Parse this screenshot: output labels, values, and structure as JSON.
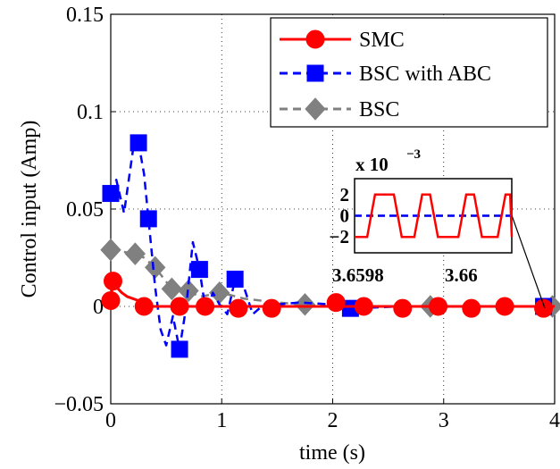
{
  "chart_data": {
    "type": "line",
    "title": "",
    "xlabel": "time (s)",
    "ylabel": "Control input (Amp)",
    "xlim": [
      0,
      4
    ],
    "ylim": [
      -0.05,
      0.15
    ],
    "x_ticks": [
      "0",
      "1",
      "2",
      "3",
      "4"
    ],
    "y_ticks": [
      "−0.05",
      "0",
      "0.05",
      "0.1",
      "0.15"
    ],
    "grid": "dotted",
    "legend_position": "top-right",
    "series": [
      {
        "name": "SMC",
        "color": "#ff0000",
        "line_style": "solid",
        "marker": "circle",
        "x": [
          0.0,
          0.02,
          0.05,
          0.1,
          0.15,
          0.2,
          0.25,
          0.3,
          0.4,
          0.6,
          0.8,
          1.0,
          1.5,
          2.0,
          2.5,
          3.0,
          3.5,
          3.95,
          4.0
        ],
        "y": [
          0.003,
          0.013,
          0.01,
          0.007,
          0.005,
          0.004,
          0.003,
          0.0,
          0.0,
          0.0,
          0.0,
          0.0,
          0.0,
          0.0,
          0.0,
          0.0,
          0.0,
          0.0,
          0.0
        ],
        "marker_x": [
          0.0,
          0.02,
          0.3,
          0.62,
          0.85,
          1.15,
          1.45,
          2.03,
          2.28,
          2.63,
          2.95,
          3.25,
          3.55,
          3.9
        ],
        "marker_y": [
          0.003,
          0.013,
          0.0,
          0.0,
          0.0,
          -0.001,
          -0.001,
          0.002,
          0.0,
          -0.001,
          0.0,
          -0.001,
          0.0,
          -0.001
        ]
      },
      {
        "name": "BSC with ABC",
        "color": "#0000ff",
        "line_style": "dashed",
        "marker": "square",
        "x": [
          0.0,
          0.05,
          0.12,
          0.2,
          0.25,
          0.3,
          0.34,
          0.4,
          0.45,
          0.5,
          0.56,
          0.62,
          0.68,
          0.74,
          0.8,
          0.86,
          0.92,
          0.98,
          1.05,
          1.12,
          1.2,
          1.28,
          1.36,
          1.5,
          1.7,
          2.0,
          2.2,
          2.6,
          3.0,
          3.5,
          3.9,
          4.0
        ],
        "y": [
          0.058,
          0.065,
          0.048,
          0.08,
          0.084,
          0.068,
          0.045,
          0.01,
          -0.012,
          -0.02,
          -0.005,
          -0.022,
          0.0,
          0.033,
          0.019,
          -0.004,
          0.007,
          0.001,
          -0.004,
          0.014,
          0.01,
          -0.004,
          0.0,
          0.001,
          0.002,
          0.001,
          -0.001,
          0.0,
          0.0,
          0.0,
          0.0,
          0.0
        ],
        "marker_x": [
          0.0,
          0.25,
          0.34,
          0.62,
          0.8,
          1.12,
          2.16,
          3.9
        ],
        "marker_y": [
          0.058,
          0.084,
          0.045,
          -0.022,
          0.019,
          0.014,
          -0.001,
          0.0
        ]
      },
      {
        "name": "BSC",
        "color": "#808080",
        "line_style": "dashed",
        "marker": "diamond",
        "x": [
          0.0,
          0.12,
          0.22,
          0.3,
          0.4,
          0.55,
          0.7,
          0.8,
          0.9,
          1.0,
          1.2,
          1.5,
          1.75,
          2.0,
          2.5,
          2.88,
          3.5,
          3.95,
          4.0
        ],
        "y": [
          0.029,
          0.028,
          0.027,
          0.025,
          0.02,
          0.009,
          0.008,
          0.005,
          0.006,
          0.007,
          0.004,
          0.002,
          0.001,
          0.0,
          0.0,
          0.0,
          0.0,
          0.0,
          0.0
        ],
        "marker_x": [
          0.0,
          0.22,
          0.4,
          0.55,
          0.7,
          0.98,
          1.75,
          2.88,
          3.98
        ],
        "marker_y": [
          0.029,
          0.027,
          0.02,
          0.009,
          0.008,
          0.007,
          0.001,
          0.0,
          0.0
        ]
      }
    ],
    "inset": {
      "scale_label": "x 10",
      "scale_exponent": "−3",
      "x_ticks": [
        "3.6598",
        "3.66"
      ],
      "y_ticks": [
        "2",
        "0",
        "−2"
      ],
      "ylim": [
        -3.5,
        3.5
      ],
      "series": [
        {
          "name": "SMC",
          "color": "#ff0000",
          "y": [
            -2,
            -2,
            2,
            2,
            -2,
            -2,
            2,
            2,
            -2,
            -2,
            2,
            2,
            -2,
            -2,
            2,
            2,
            -2
          ],
          "x": [
            0.0,
            0.08,
            0.13,
            0.25,
            0.3,
            0.38,
            0.43,
            0.48,
            0.53,
            0.66,
            0.71,
            0.76,
            0.81,
            0.91,
            0.96,
            0.99,
            1.0
          ]
        },
        {
          "name": "BSC with ABC",
          "color": "#0000ff",
          "y": [
            0,
            0
          ],
          "x": [
            0.0,
            1.0
          ]
        },
        {
          "name": "BSC",
          "color": "#808080",
          "y": [
            0,
            0
          ],
          "x": [
            0.0,
            1.0
          ]
        }
      ]
    }
  }
}
